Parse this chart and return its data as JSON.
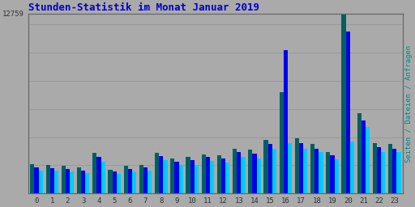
{
  "title": "Stunden-Statistik im Monat Januar 2019",
  "title_color": "#0000cc",
  "title_fontsize": 9,
  "ylabel_right": "Seiten / Dateien / Anfragen",
  "ylabel_right_color": "#008888",
  "background_color": "#aaaaaa",
  "plot_bg_color": "#aaaaaa",
  "grid_color": "#999999",
  "categories": [
    0,
    1,
    2,
    3,
    4,
    5,
    6,
    7,
    8,
    9,
    10,
    11,
    12,
    13,
    14,
    15,
    16,
    17,
    18,
    19,
    20,
    21,
    22,
    23
  ],
  "green_vals": [
    2100,
    2000,
    1950,
    1850,
    2900,
    1700,
    1950,
    2050,
    2900,
    2500,
    2600,
    2800,
    2700,
    3200,
    3100,
    3800,
    7200,
    3900,
    3500,
    2950,
    12759,
    5700,
    3600,
    3500
  ],
  "blue_vals": [
    1850,
    1800,
    1750,
    1650,
    2600,
    1550,
    1750,
    1850,
    2650,
    2250,
    2350,
    2600,
    2500,
    2950,
    2850,
    3500,
    10200,
    3600,
    3200,
    2700,
    11500,
    5200,
    3300,
    3200
  ],
  "cyan_vals": [
    1600,
    1600,
    1550,
    1450,
    2250,
    1400,
    1550,
    1600,
    2350,
    2000,
    2050,
    2300,
    2200,
    2600,
    2500,
    3200,
    3600,
    3200,
    2950,
    2450,
    3700,
    4700,
    2950,
    2950
  ],
  "color_green": "#006060",
  "color_blue": "#0000ee",
  "color_cyan": "#00ccff",
  "bar_width": 0.27,
  "ylim_max": 12759,
  "ytick_val": 12759,
  "grid_vals": [
    2000,
    4000,
    6000,
    8000,
    10000,
    12000
  ],
  "font_family": "monospace"
}
